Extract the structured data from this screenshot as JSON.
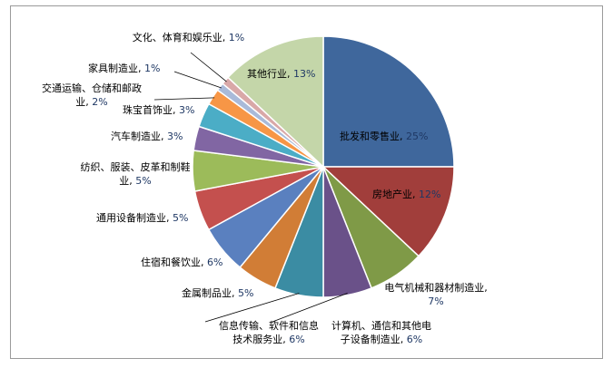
{
  "chart_data": {
    "type": "pie",
    "start": "top",
    "direction": "clockwise",
    "slices": [
      {
        "label": "批发和零售业",
        "value": 25,
        "pct": "25%",
        "color": "#3F679C"
      },
      {
        "label": "房地产业",
        "value": 12,
        "pct": "12%",
        "color": "#A13E3B"
      },
      {
        "label": "电气机械和器材制造业",
        "value": 7,
        "pct": "7%",
        "color": "#7F9A47"
      },
      {
        "label": "计算机、通信和其他电子设备制造业",
        "value": 6,
        "pct": "6%",
        "color": "#6A5189"
      },
      {
        "label": "信息传输、软件和信息技术服务业",
        "value": 6,
        "pct": "6%",
        "color": "#3B8CA3"
      },
      {
        "label": "金属制品业",
        "value": 5,
        "pct": "5%",
        "color": "#D17D36"
      },
      {
        "label": "住宿和餐饮业",
        "value": 6,
        "pct": "6%",
        "color": "#5A80BF"
      },
      {
        "label": "通用设备制造业",
        "value": 5,
        "pct": "5%",
        "color": "#C4504E"
      },
      {
        "label": "纺织、服装、皮革和制鞋业",
        "value": 5,
        "pct": "5%",
        "color": "#9CBB5A"
      },
      {
        "label": "汽车制造业",
        "value": 3,
        "pct": "3%",
        "color": "#8166A3"
      },
      {
        "label": "珠宝首饰业",
        "value": 3,
        "pct": "3%",
        "color": "#4BADC6"
      },
      {
        "label": "交通运输、仓储和邮政业",
        "value": 2,
        "pct": "2%",
        "color": "#F79646"
      },
      {
        "label": "家具制造业",
        "value": 1,
        "pct": "1%",
        "color": "#A9BAD9"
      },
      {
        "label": "文化、体育和娱乐业",
        "value": 1,
        "pct": "1%",
        "color": "#D9A8A8"
      },
      {
        "label": "其他行业",
        "value": 13,
        "pct": "13%",
        "color": "#C4D6A9"
      }
    ]
  }
}
